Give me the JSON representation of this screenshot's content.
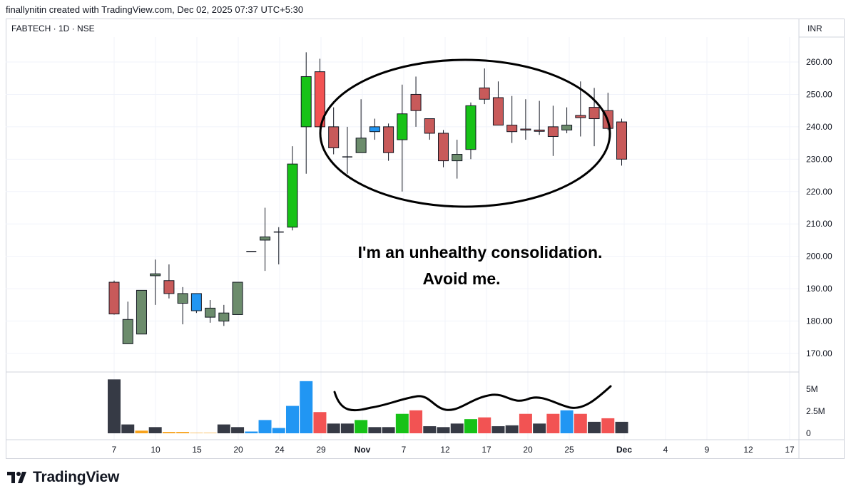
{
  "header": {
    "credit": "finallynitin created with TradingView.com, Dec 02, 2025 07:37 UTC+5:30",
    "symbol": "FABTECH · 1D · NSE",
    "currency": "INR"
  },
  "annotation": {
    "line1": "I'm an unhealthy consolidation.",
    "line2": "Avoid me."
  },
  "footer": {
    "brand": "TradingView"
  },
  "colors": {
    "green": "#17c217",
    "red": "#f25353",
    "muted_green": "#6c8c6c",
    "muted_red": "#c85a5a",
    "blue": "#2196f3",
    "orange": "#f7a21b",
    "dark": "#363a45",
    "grid": "#f0f3fa",
    "axis_text": "#131722"
  },
  "chart_data": {
    "type": "candlestick",
    "price_axis": {
      "ticks": [
        "260.00",
        "250.00",
        "240.00",
        "230.00",
        "220.00",
        "210.00",
        "200.00",
        "190.00",
        "180.00",
        "170.00"
      ],
      "range": [
        165,
        265
      ]
    },
    "volume_axis": {
      "ticks": [
        "5M",
        "2.5M",
        "0"
      ],
      "range": [
        0,
        6500000
      ]
    },
    "x_ticks": [
      "7",
      "10",
      "15",
      "20",
      "24",
      "29",
      "Nov",
      "7",
      "12",
      "17",
      "20",
      "25",
      "Dec",
      "4",
      "9",
      "12",
      "17"
    ],
    "candles": [
      {
        "o": 192,
        "h": 192.5,
        "l": 182,
        "c": 182.2,
        "col": "muted_red"
      },
      {
        "o": 173,
        "h": 186,
        "l": 173,
        "c": 180.5,
        "col": "muted_green"
      },
      {
        "o": 176,
        "h": 189.5,
        "l": 176,
        "c": 189.5,
        "col": "muted_green"
      },
      {
        "o": 194,
        "h": 199,
        "l": 185,
        "c": 194.6,
        "col": "muted_green"
      },
      {
        "o": 192.5,
        "h": 197.5,
        "l": 187,
        "c": 188.5,
        "col": "muted_red"
      },
      {
        "o": 185.5,
        "h": 190.5,
        "l": 179,
        "c": 188.5,
        "col": "muted_green"
      },
      {
        "o": 188.5,
        "h": 188.5,
        "l": 182.5,
        "c": 183.2,
        "col": "blue"
      },
      {
        "o": 181.2,
        "h": 186.5,
        "l": 179.5,
        "c": 184,
        "col": "muted_green"
      },
      {
        "o": 180,
        "h": 185,
        "l": 178.5,
        "c": 182.5,
        "col": "muted_green"
      },
      {
        "o": 182,
        "h": 192,
        "l": 182,
        "c": 192,
        "col": "muted_green"
      },
      {
        "o": 201.5,
        "h": 201.5,
        "l": 201.5,
        "c": 201.5,
        "col": "dark"
      },
      {
        "o": 205,
        "h": 215,
        "l": 195.5,
        "c": 206,
        "col": "muted_green"
      },
      {
        "o": 207.5,
        "h": 209,
        "l": 197.5,
        "c": 207.5,
        "col": "dark"
      },
      {
        "o": 209,
        "h": 234,
        "l": 208,
        "c": 228.5,
        "col": "green"
      },
      {
        "o": 240,
        "h": 263,
        "l": 225.5,
        "c": 255.5,
        "col": "green"
      },
      {
        "o": 257,
        "h": 261,
        "l": 238,
        "c": 240,
        "col": "red"
      },
      {
        "o": 240,
        "h": 246,
        "l": 231.5,
        "c": 233.5,
        "col": "muted_red"
      },
      {
        "o": 230.7,
        "h": 240,
        "l": 225.5,
        "c": 230.7,
        "col": "dark"
      },
      {
        "o": 232,
        "h": 248.5,
        "l": 232,
        "c": 236.5,
        "col": "muted_green"
      },
      {
        "o": 238.5,
        "h": 242.5,
        "l": 236,
        "c": 240,
        "col": "blue"
      },
      {
        "o": 240,
        "h": 241,
        "l": 229.5,
        "c": 232,
        "col": "muted_red"
      },
      {
        "o": 236,
        "h": 253,
        "l": 220,
        "c": 244,
        "col": "green"
      },
      {
        "o": 250,
        "h": 255.5,
        "l": 240,
        "c": 245,
        "col": "muted_red"
      },
      {
        "o": 242.5,
        "h": 242.5,
        "l": 236,
        "c": 238,
        "col": "muted_red"
      },
      {
        "o": 238,
        "h": 239,
        "l": 227.5,
        "c": 229.5,
        "col": "muted_red"
      },
      {
        "o": 229.5,
        "h": 236,
        "l": 224,
        "c": 231.5,
        "col": "muted_green"
      },
      {
        "o": 233,
        "h": 247.5,
        "l": 230,
        "c": 246.5,
        "col": "green"
      },
      {
        "o": 252,
        "h": 258,
        "l": 247,
        "c": 248.5,
        "col": "muted_red"
      },
      {
        "o": 249,
        "h": 254,
        "l": 240.5,
        "c": 240.5,
        "col": "muted_red"
      },
      {
        "o": 240.5,
        "h": 249.5,
        "l": 235,
        "c": 238.5,
        "col": "muted_red"
      },
      {
        "o": 239.3,
        "h": 248.5,
        "l": 236,
        "c": 239,
        "col": "muted_red"
      },
      {
        "o": 239,
        "h": 248,
        "l": 237.5,
        "c": 238.6,
        "col": "muted_red"
      },
      {
        "o": 240,
        "h": 246.5,
        "l": 231,
        "c": 237,
        "col": "muted_red"
      },
      {
        "o": 239,
        "h": 246,
        "l": 238,
        "c": 240.5,
        "col": "muted_green"
      },
      {
        "o": 243.5,
        "h": 254,
        "l": 237,
        "c": 242.8,
        "col": "muted_red"
      },
      {
        "o": 246,
        "h": 252,
        "l": 234,
        "c": 242.5,
        "col": "muted_red"
      },
      {
        "o": 245,
        "h": 250.5,
        "l": 239,
        "c": 239.5,
        "col": "muted_red"
      },
      {
        "o": 241.5,
        "h": 242.5,
        "l": 228,
        "c": 230,
        "col": "muted_red"
      }
    ],
    "volumes": [
      {
        "v": 6100000,
        "col": "dark"
      },
      {
        "v": 1000000,
        "col": "dark"
      },
      {
        "v": 300000,
        "col": "orange"
      },
      {
        "v": 700000,
        "col": "dark"
      },
      {
        "v": 150000,
        "col": "orange"
      },
      {
        "v": 150000,
        "col": "orange"
      },
      {
        "v": 50000,
        "col": "orange"
      },
      {
        "v": 50000,
        "col": "orange"
      },
      {
        "v": 1000000,
        "col": "dark"
      },
      {
        "v": 700000,
        "col": "dark"
      },
      {
        "v": 200000,
        "col": "blue"
      },
      {
        "v": 1500000,
        "col": "blue"
      },
      {
        "v": 600000,
        "col": "blue"
      },
      {
        "v": 3100000,
        "col": "blue"
      },
      {
        "v": 5900000,
        "col": "blue"
      },
      {
        "v": 2400000,
        "col": "red"
      },
      {
        "v": 1100000,
        "col": "dark"
      },
      {
        "v": 1100000,
        "col": "dark"
      },
      {
        "v": 1500000,
        "col": "green"
      },
      {
        "v": 700000,
        "col": "dark"
      },
      {
        "v": 700000,
        "col": "dark"
      },
      {
        "v": 2200000,
        "col": "green"
      },
      {
        "v": 2600000,
        "col": "red"
      },
      {
        "v": 800000,
        "col": "dark"
      },
      {
        "v": 700000,
        "col": "dark"
      },
      {
        "v": 1100000,
        "col": "dark"
      },
      {
        "v": 1600000,
        "col": "green"
      },
      {
        "v": 1800000,
        "col": "red"
      },
      {
        "v": 800000,
        "col": "dark"
      },
      {
        "v": 900000,
        "col": "dark"
      },
      {
        "v": 2200000,
        "col": "red"
      },
      {
        "v": 1100000,
        "col": "dark"
      },
      {
        "v": 2200000,
        "col": "red"
      },
      {
        "v": 2600000,
        "col": "blue"
      },
      {
        "v": 2200000,
        "col": "red"
      },
      {
        "v": 1300000,
        "col": "dark"
      },
      {
        "v": 1700000,
        "col": "red"
      },
      {
        "v": 1300000,
        "col": "dark"
      }
    ]
  }
}
